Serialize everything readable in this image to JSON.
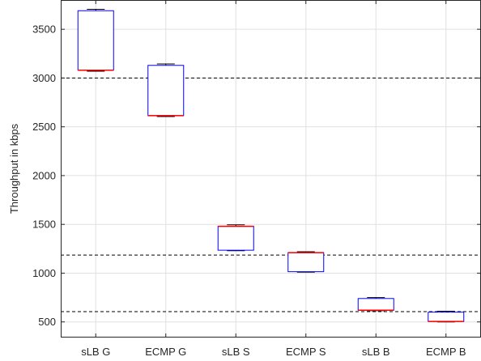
{
  "chart_data": {
    "type": "box",
    "title": "",
    "xlabel": "",
    "ylabel": "Throughput in kbps",
    "ylim": [
      340,
      3800
    ],
    "yticks": [
      500,
      1000,
      1500,
      2000,
      2500,
      3000,
      3500
    ],
    "categories": [
      "sLB G",
      "ECMP G",
      "sLB S",
      "ECMP S",
      "sLB B",
      "ECMP B"
    ],
    "boxes": [
      {
        "name": "sLB G",
        "min": 3070,
        "q1": 3080,
        "median": 3080,
        "q3": 3690,
        "max": 3705
      },
      {
        "name": "ECMP G",
        "min": 2605,
        "q1": 2615,
        "median": 2615,
        "q3": 3130,
        "max": 3145
      },
      {
        "name": "sLB S",
        "min": 1230,
        "q1": 1235,
        "median": 1480,
        "q3": 1480,
        "max": 1495
      },
      {
        "name": "ECMP S",
        "min": 1010,
        "q1": 1015,
        "median": 1210,
        "q3": 1210,
        "max": 1220
      },
      {
        "name": "sLB B",
        "min": 615,
        "q1": 620,
        "median": 620,
        "q3": 740,
        "max": 750
      },
      {
        "name": "ECMP B",
        "min": 500,
        "q1": 505,
        "median": 505,
        "q3": 600,
        "max": 610
      }
    ],
    "reference_lines": [
      3000,
      1185,
      605
    ],
    "grid": true,
    "colors": {
      "box": "#0000ff",
      "median": "#ff0000",
      "whisker": "#000000",
      "reference": "#000000",
      "grid": "#e0e0e0"
    }
  }
}
